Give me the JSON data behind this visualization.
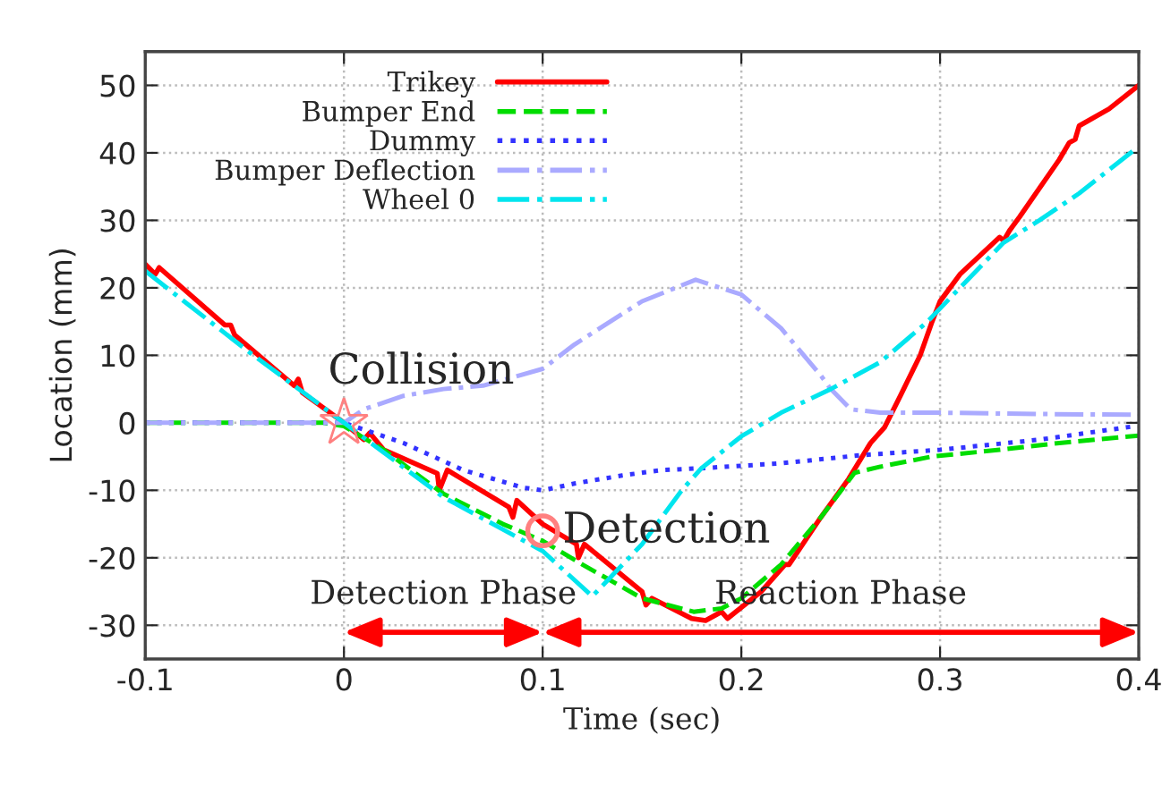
{
  "chart_data": {
    "type": "line",
    "xlabel": "Time (sec)",
    "ylabel": "Location (mm)",
    "xlim": [
      -0.1,
      0.4
    ],
    "xticks": [
      -0.1,
      0,
      0.1,
      0.2,
      0.3,
      0.4
    ],
    "ylim": [
      -35,
      55
    ],
    "yticks": [
      -30,
      -20,
      -10,
      0,
      10,
      20,
      30,
      40,
      50
    ],
    "grid": true,
    "legend": "top left",
    "annotations": [
      {
        "text": "Collision",
        "x": 0,
        "y": 0
      },
      {
        "text": "Detection",
        "x": 0.1,
        "y": -16
      },
      "Detection Phase",
      "Reaction Phase"
    ],
    "series": [
      {
        "name": "Trikey",
        "color": "#ff0000",
        "line_style": "solid",
        "x": [
          -0.1,
          -0.095,
          -0.093,
          -0.06,
          -0.057,
          -0.055,
          -0.025,
          -0.023,
          -0.021,
          0,
          0.01,
          0.013,
          0.02,
          0.047,
          0.048,
          0.052,
          0.083,
          0.085,
          0.087,
          0.1,
          0.117,
          0.118,
          0.121,
          0.15,
          0.152,
          0.155,
          0.175,
          0.182,
          0.19,
          0.193,
          0.21,
          0.222,
          0.224,
          0.24,
          0.254,
          0.265,
          0.272,
          0.28,
          0.29,
          0.296,
          0.3,
          0.31,
          0.33,
          0.332,
          0.335,
          0.34,
          0.36,
          0.365,
          0.368,
          0.37,
          0.385,
          0.4
        ],
        "values": [
          23.5,
          22,
          23,
          14.5,
          14.5,
          13,
          5.5,
          6.5,
          4.5,
          0,
          -2.5,
          -1.5,
          -4,
          -7.5,
          -10,
          -7,
          -12.5,
          -14,
          -11.5,
          -15,
          -18,
          -20,
          -18,
          -25,
          -27,
          -26,
          -29,
          -29.3,
          -28,
          -29,
          -25,
          -21,
          -21,
          -14,
          -8.3,
          -3,
          -0.7,
          4,
          10,
          15,
          18,
          22,
          27.5,
          27,
          28.5,
          30.5,
          39,
          41.5,
          42,
          44,
          46.5,
          50
        ]
      },
      {
        "name": "Bumper End",
        "color": "#00dd00",
        "line_style": "dashed",
        "x": [
          -0.1,
          -0.05,
          -0.01,
          0,
          0.02,
          0.05,
          0.08,
          0.1,
          0.12,
          0.15,
          0.176,
          0.19,
          0.2,
          0.22,
          0.24,
          0.257,
          0.27,
          0.296,
          0.33,
          0.36,
          0.4
        ],
        "values": [
          0,
          0,
          0,
          -0.5,
          -4,
          -10.5,
          -15,
          -17.5,
          -21,
          -26,
          -28,
          -27.5,
          -26,
          -21,
          -14,
          -7.4,
          -6.5,
          -5,
          -4,
          -3,
          -1.9
        ]
      },
      {
        "name": "Dummy",
        "color": "#3333ff",
        "line_style": "dotted",
        "x": [
          -0.1,
          -0.05,
          0,
          0.03,
          0.06,
          0.09,
          0.1,
          0.116,
          0.14,
          0.16,
          0.182,
          0.22,
          0.26,
          0.3,
          0.35,
          0.398
        ],
        "values": [
          0,
          0,
          0,
          -3,
          -7,
          -9.6,
          -10,
          -9,
          -7.8,
          -7,
          -6.7,
          -6,
          -4.8,
          -4,
          -2.5,
          -0.5
        ]
      },
      {
        "name": "Bumper Deflection",
        "color": "#aaaaff",
        "line_style": "dashdot",
        "x": [
          -0.1,
          -0.05,
          0,
          0.01,
          0.03,
          0.05,
          0.07,
          0.1,
          0.116,
          0.15,
          0.177,
          0.2,
          0.22,
          0.24,
          0.245,
          0.255,
          0.27,
          0.3,
          0.35,
          0.4
        ],
        "values": [
          0,
          0,
          0,
          2,
          4,
          5,
          5.5,
          8,
          11.6,
          18,
          21.2,
          19,
          14,
          7,
          5,
          2,
          1.5,
          1.5,
          1.3,
          1.2
        ]
      },
      {
        "name": "Wheel 0",
        "color": "#00e5ee",
        "line_style": "dashdot",
        "x": [
          -0.1,
          -0.05,
          0,
          0.05,
          0.1,
          0.125,
          0.15,
          0.17,
          0.18,
          0.2,
          0.22,
          0.245,
          0.27,
          0.293,
          0.31,
          0.332,
          0.35,
          0.37,
          0.398
        ],
        "values": [
          22.5,
          11,
          0,
          -11,
          -19,
          -25.7,
          -18,
          -10,
          -6.7,
          -2,
          1.5,
          5,
          9,
          14.8,
          20,
          26.7,
          30,
          34,
          40.5
        ]
      }
    ]
  }
}
